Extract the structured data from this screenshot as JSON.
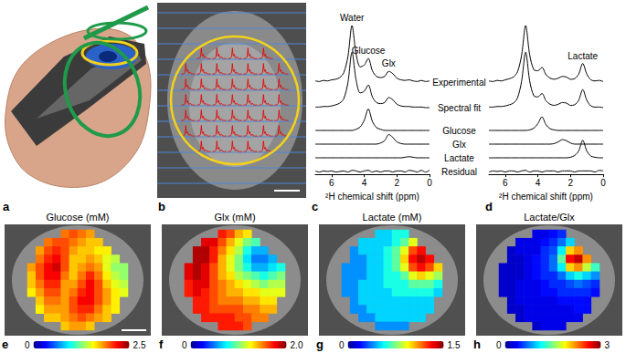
{
  "chart_data": [
    {
      "type": "render",
      "panel": "a"
    },
    {
      "type": "spectroscopic_imaging",
      "panel": "b"
    },
    {
      "type": "line",
      "panel": "c",
      "x": [
        7,
        6.75,
        6.5,
        6.25,
        6,
        5.75,
        5.5,
        5.25,
        5,
        4.75,
        4.5,
        4.25,
        4,
        3.75,
        3.5,
        3.25,
        3,
        2.75,
        2.5,
        2.25,
        2,
        1.75,
        1.5,
        1.25,
        1,
        0.75,
        0.5,
        0.25,
        0
      ],
      "xlim": [
        7,
        0
      ],
      "xticks": [
        6,
        4,
        2,
        0
      ],
      "xlabel": "²H chemical shift (ppm)",
      "ylim": [
        -0.05,
        1.05
      ],
      "tick_labels": "x",
      "color": "#000000",
      "series": [
        {
          "name": "Experimental",
          "values": [
            0.02,
            0.01,
            0.03,
            0.02,
            0.04,
            0.05,
            0.08,
            0.17,
            0.45,
            1.0,
            0.5,
            0.27,
            0.3,
            0.42,
            0.2,
            0.1,
            0.08,
            0.1,
            0.19,
            0.15,
            0.07,
            0.04,
            0.03,
            0.04,
            0.02,
            0.01,
            0.03,
            0.01,
            0.02
          ]
        },
        {
          "name": "Spectral fit",
          "values": [
            0.01,
            0.01,
            0.02,
            0.02,
            0.03,
            0.05,
            0.08,
            0.16,
            0.44,
            0.98,
            0.49,
            0.26,
            0.29,
            0.4,
            0.19,
            0.09,
            0.07,
            0.09,
            0.18,
            0.14,
            0.06,
            0.03,
            0.02,
            0.02,
            0.01,
            0.01,
            0.01,
            0,
            0
          ]
        },
        {
          "name": "Glucose",
          "values": [
            0,
            0,
            0,
            0,
            0,
            0,
            0,
            0,
            0,
            0,
            0.02,
            0.06,
            0.18,
            0.38,
            0.16,
            0.05,
            0.02,
            0,
            0,
            0,
            0,
            0,
            0,
            0,
            0,
            0,
            0,
            0,
            0
          ]
        },
        {
          "name": "Glx",
          "values": [
            0,
            0,
            0,
            0,
            0,
            0,
            0,
            0,
            0,
            0,
            0,
            0,
            0,
            0,
            0,
            0,
            0.02,
            0.06,
            0.17,
            0.12,
            0.04,
            0.01,
            0,
            0,
            0,
            0,
            0,
            0,
            0
          ]
        },
        {
          "name": "Lactate",
          "values": [
            0,
            0,
            0,
            0,
            0,
            0,
            0,
            0,
            0,
            0,
            0,
            0,
            0,
            0,
            0,
            0,
            0,
            0,
            0,
            0,
            0,
            0,
            0.01,
            0.02,
            0.01,
            0,
            0,
            0,
            0
          ]
        },
        {
          "name": "Residual",
          "values": [
            0.01,
            -0.01,
            0.01,
            0,
            0.01,
            -0.01,
            0,
            0.01,
            -0.01,
            0.02,
            0.01,
            -0.01,
            0.01,
            0.02,
            -0.01,
            0.01,
            -0.01,
            0.01,
            0.01,
            -0.01,
            0.01,
            0.01,
            -0.01,
            0.02,
            0.01,
            -0.01,
            0.02,
            -0.01,
            0.02
          ]
        }
      ],
      "annotations": [
        {
          "text": "Water",
          "x": 4.75
        },
        {
          "text": "Glucose",
          "x": 3.75
        },
        {
          "text": "Glx",
          "x": 2.5
        }
      ]
    },
    {
      "type": "line",
      "panel": "d",
      "x": [
        7,
        6.75,
        6.5,
        6.25,
        6,
        5.75,
        5.5,
        5.25,
        5,
        4.75,
        4.5,
        4.25,
        4,
        3.75,
        3.5,
        3.25,
        3,
        2.75,
        2.5,
        2.25,
        2,
        1.75,
        1.5,
        1.25,
        1,
        0.75,
        0.5,
        0.25,
        0
      ],
      "xlim": [
        7,
        0
      ],
      "xticks": [
        6,
        4,
        2,
        0
      ],
      "xlabel": "²H chemical shift (ppm)",
      "ylim": [
        -0.05,
        1.05
      ],
      "tick_labels": "x",
      "color": "#000000",
      "series": [
        {
          "name": "Experimental",
          "values": [
            0.02,
            0.01,
            0.03,
            0.02,
            0.04,
            0.06,
            0.09,
            0.18,
            0.47,
            1.0,
            0.48,
            0.22,
            0.2,
            0.26,
            0.13,
            0.07,
            0.05,
            0.07,
            0.1,
            0.09,
            0.05,
            0.06,
            0.14,
            0.33,
            0.14,
            0.04,
            0.02,
            0.03,
            0.01
          ]
        },
        {
          "name": "Spectral fit",
          "values": [
            0.01,
            0.01,
            0.02,
            0.02,
            0.03,
            0.05,
            0.08,
            0.17,
            0.46,
            0.98,
            0.47,
            0.21,
            0.19,
            0.25,
            0.12,
            0.06,
            0.04,
            0.06,
            0.09,
            0.08,
            0.04,
            0.05,
            0.13,
            0.32,
            0.13,
            0.03,
            0.01,
            0.01,
            0
          ]
        },
        {
          "name": "Glucose",
          "values": [
            0,
            0,
            0,
            0,
            0,
            0,
            0,
            0,
            0,
            0,
            0.01,
            0.04,
            0.12,
            0.24,
            0.1,
            0.03,
            0.01,
            0,
            0,
            0,
            0,
            0,
            0,
            0,
            0,
            0,
            0,
            0,
            0
          ]
        },
        {
          "name": "Glx",
          "values": [
            0,
            0,
            0,
            0,
            0,
            0,
            0,
            0,
            0,
            0,
            0,
            0,
            0,
            0,
            0,
            0,
            0.01,
            0.04,
            0.08,
            0.06,
            0.02,
            0,
            0,
            0,
            0,
            0,
            0,
            0,
            0
          ]
        },
        {
          "name": "Lactate",
          "values": [
            0,
            0,
            0,
            0,
            0,
            0,
            0,
            0,
            0,
            0,
            0,
            0,
            0,
            0,
            0,
            0,
            0,
            0,
            0,
            0,
            0.01,
            0.04,
            0.12,
            0.31,
            0.12,
            0.03,
            0.01,
            0,
            0
          ]
        },
        {
          "name": "Residual",
          "values": [
            -0.01,
            0.01,
            0,
            0.01,
            -0.01,
            0.01,
            0.01,
            -0.01,
            0.01,
            0.02,
            -0.01,
            0.01,
            0.01,
            -0.01,
            0.01,
            0.01,
            0.01,
            -0.01,
            0.01,
            0.01,
            0.01,
            -0.01,
            0.01,
            0.01,
            0.01,
            0.01,
            -0.01,
            0.02,
            0.01
          ]
        }
      ],
      "annotations": [
        {
          "text": "Lactate",
          "x": 1.25
        }
      ]
    },
    {
      "type": "heatmap",
      "panel": "e",
      "title": "Glucose (mM)",
      "tick_labels": false,
      "colorbar": {
        "range": [
          0,
          2.5
        ],
        "ticks": [
          0,
          2.5
        ]
      },
      "cells": [
        [
          null,
          null,
          null,
          null,
          1.9,
          2.0,
          1.9,
          1.8,
          null,
          null,
          null,
          null
        ],
        [
          null,
          null,
          1.9,
          2.0,
          2.0,
          1.9,
          1.8,
          1.7,
          1.7,
          null,
          null,
          null
        ],
        [
          null,
          1.8,
          2.0,
          2.1,
          2.0,
          1.8,
          1.7,
          1.7,
          1.6,
          1.6,
          null,
          null
        ],
        [
          null,
          1.9,
          2.1,
          2.2,
          2.0,
          1.7,
          1.7,
          1.8,
          1.7,
          1.5,
          1.4,
          null
        ],
        [
          1.8,
          2.0,
          2.2,
          2.3,
          2.0,
          1.7,
          1.8,
          1.9,
          1.8,
          1.5,
          1.3,
          1.3
        ],
        [
          1.7,
          2.0,
          2.2,
          2.2,
          1.9,
          1.7,
          1.9,
          2.1,
          1.9,
          1.6,
          1.4,
          1.3
        ],
        [
          1.7,
          1.9,
          2.1,
          2.1,
          1.8,
          1.8,
          2.0,
          2.2,
          2.0,
          1.7,
          1.5,
          1.4
        ],
        [
          1.6,
          1.8,
          2.0,
          2.0,
          1.8,
          1.9,
          2.1,
          2.2,
          2.0,
          1.8,
          1.6,
          1.5
        ],
        [
          null,
          1.7,
          1.9,
          1.9,
          1.8,
          2.0,
          2.2,
          2.2,
          2.0,
          1.8,
          1.6,
          null
        ],
        [
          null,
          1.6,
          1.8,
          1.8,
          1.8,
          2.0,
          2.1,
          2.1,
          1.9,
          1.7,
          1.6,
          null
        ],
        [
          null,
          null,
          1.7,
          1.7,
          1.8,
          1.9,
          2.0,
          1.9,
          1.8,
          1.7,
          null,
          null
        ],
        [
          null,
          null,
          null,
          null,
          1.7,
          1.8,
          1.8,
          1.7,
          null,
          null,
          null,
          null
        ]
      ]
    },
    {
      "type": "heatmap",
      "panel": "f",
      "title": "Glx (mM)",
      "tick_labels": false,
      "colorbar": {
        "range": [
          0,
          2
        ],
        "ticks": [
          0,
          {
            "value": 2,
            "label": "2.0"
          }
        ]
      },
      "cells": [
        [
          null,
          null,
          null,
          null,
          1.7,
          1.6,
          1.4,
          1.3,
          null,
          null,
          null,
          null
        ],
        [
          null,
          null,
          1.8,
          1.8,
          1.6,
          1.4,
          1.2,
          1.0,
          0.9,
          null,
          null,
          null
        ],
        [
          null,
          1.9,
          1.9,
          1.7,
          1.5,
          1.3,
          1.1,
          0.8,
          0.6,
          0.6,
          null,
          null
        ],
        [
          null,
          1.9,
          1.9,
          1.7,
          1.4,
          1.2,
          1.0,
          0.7,
          0.5,
          0.5,
          0.6,
          null
        ],
        [
          1.8,
          1.9,
          1.8,
          1.6,
          1.4,
          1.2,
          1.0,
          0.8,
          0.6,
          0.6,
          0.7,
          0.8
        ],
        [
          1.8,
          1.9,
          1.8,
          1.6,
          1.4,
          1.3,
          1.1,
          1.0,
          0.9,
          0.8,
          0.9,
          1.0
        ],
        [
          1.7,
          1.8,
          1.8,
          1.6,
          1.5,
          1.4,
          1.3,
          1.2,
          1.1,
          1.0,
          1.1,
          1.1
        ],
        [
          1.7,
          1.8,
          1.7,
          1.6,
          1.5,
          1.4,
          1.4,
          1.3,
          1.3,
          1.2,
          1.2,
          1.2
        ],
        [
          null,
          1.7,
          1.7,
          1.6,
          1.5,
          1.5,
          1.5,
          1.4,
          1.4,
          1.3,
          1.3,
          null
        ],
        [
          null,
          1.7,
          1.7,
          1.6,
          1.6,
          1.6,
          1.6,
          1.5,
          1.5,
          1.4,
          1.4,
          null
        ],
        [
          null,
          null,
          1.7,
          1.7,
          1.7,
          1.7,
          1.6,
          1.6,
          1.5,
          1.5,
          null,
          null
        ],
        [
          null,
          null,
          null,
          null,
          1.7,
          1.7,
          1.7,
          1.6,
          null,
          null,
          null,
          null
        ]
      ]
    },
    {
      "type": "heatmap",
      "panel": "g",
      "title": "Lactate (mM)",
      "tick_labels": false,
      "colorbar": {
        "range": [
          0,
          1.5
        ],
        "ticks": [
          0,
          1.5
        ]
      },
      "cells": [
        [
          null,
          null,
          null,
          null,
          0.5,
          0.5,
          0.6,
          0.6,
          null,
          null,
          null,
          null
        ],
        [
          null,
          null,
          0.5,
          0.5,
          0.5,
          0.5,
          0.6,
          0.7,
          0.9,
          null,
          null,
          null
        ],
        [
          null,
          0.4,
          0.5,
          0.5,
          0.5,
          0.6,
          0.7,
          0.9,
          1.2,
          1.3,
          null,
          null
        ],
        [
          null,
          0.4,
          0.4,
          0.5,
          0.5,
          0.6,
          0.7,
          1.0,
          1.3,
          1.4,
          1.3,
          null
        ],
        [
          0.4,
          0.4,
          0.4,
          0.5,
          0.5,
          0.6,
          0.7,
          0.9,
          1.2,
          1.3,
          1.2,
          1.0
        ],
        [
          0.4,
          0.4,
          0.4,
          0.5,
          0.5,
          0.6,
          0.6,
          0.7,
          0.9,
          1.0,
          0.9,
          0.8
        ],
        [
          0.4,
          0.4,
          0.5,
          0.5,
          0.5,
          0.6,
          0.6,
          0.6,
          0.7,
          0.7,
          0.7,
          0.6
        ],
        [
          0.4,
          0.4,
          0.5,
          0.5,
          0.5,
          0.5,
          0.6,
          0.6,
          0.6,
          0.6,
          0.6,
          0.5
        ],
        [
          null,
          0.4,
          0.5,
          0.5,
          0.5,
          0.5,
          0.5,
          0.5,
          0.5,
          0.5,
          0.5,
          null
        ],
        [
          null,
          0.4,
          0.4,
          0.5,
          0.5,
          0.5,
          0.5,
          0.5,
          0.5,
          0.5,
          0.5,
          null
        ],
        [
          null,
          null,
          0.4,
          0.4,
          0.5,
          0.5,
          0.5,
          0.5,
          0.5,
          0.5,
          null,
          null
        ],
        [
          null,
          null,
          null,
          null,
          0.4,
          0.4,
          0.4,
          0.4,
          null,
          null,
          null,
          null
        ]
      ]
    },
    {
      "type": "heatmap",
      "panel": "h",
      "title": "Lactate/Glx",
      "tick_labels": false,
      "colorbar": {
        "range": [
          0,
          3
        ],
        "ticks": [
          0,
          3
        ]
      },
      "cells": [
        [
          null,
          null,
          null,
          null,
          0.3,
          0.3,
          0.4,
          0.5,
          null,
          null,
          null,
          null
        ],
        [
          null,
          null,
          0.3,
          0.3,
          0.3,
          0.4,
          0.5,
          0.7,
          1.0,
          null,
          null,
          null
        ],
        [
          null,
          0.2,
          0.3,
          0.3,
          0.3,
          0.5,
          0.6,
          1.1,
          2.0,
          2.2,
          null,
          null
        ],
        [
          null,
          0.2,
          0.2,
          0.3,
          0.4,
          0.5,
          0.7,
          1.4,
          2.6,
          2.8,
          2.2,
          null
        ],
        [
          0.2,
          0.2,
          0.2,
          0.3,
          0.4,
          0.5,
          0.7,
          1.1,
          2.0,
          2.2,
          1.7,
          1.3
        ],
        [
          0.2,
          0.2,
          0.2,
          0.3,
          0.4,
          0.5,
          0.5,
          0.7,
          1.0,
          1.2,
          1.0,
          0.8
        ],
        [
          0.2,
          0.2,
          0.3,
          0.3,
          0.3,
          0.4,
          0.5,
          0.5,
          0.6,
          0.7,
          0.6,
          0.5
        ],
        [
          0.2,
          0.2,
          0.3,
          0.3,
          0.3,
          0.4,
          0.4,
          0.5,
          0.5,
          0.5,
          0.5,
          0.4
        ],
        [
          null,
          0.2,
          0.3,
          0.3,
          0.3,
          0.3,
          0.3,
          0.4,
          0.4,
          0.4,
          0.4,
          null
        ],
        [
          null,
          0.2,
          0.2,
          0.3,
          0.3,
          0.3,
          0.3,
          0.3,
          0.3,
          0.4,
          0.4,
          null
        ],
        [
          null,
          null,
          0.2,
          0.3,
          0.3,
          0.3,
          0.3,
          0.3,
          0.3,
          0.3,
          null,
          null
        ],
        [
          null,
          null,
          null,
          null,
          0.2,
          0.3,
          0.3,
          0.3,
          null,
          null,
          null,
          null
        ]
      ]
    }
  ]
}
